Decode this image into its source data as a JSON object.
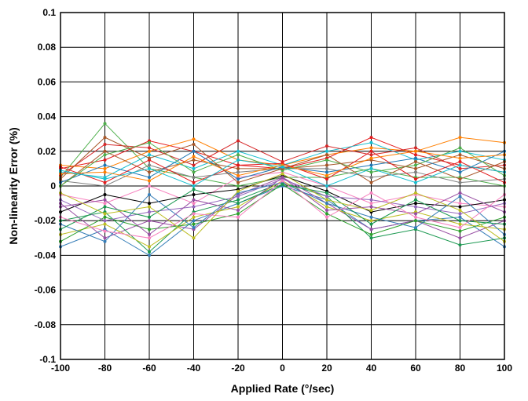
{
  "chart_data": {
    "type": "line",
    "title": "",
    "xlabel": "Applied Rate (°/sec)",
    "ylabel": "Non-linearity Error (%)",
    "xlim": [
      -100,
      100
    ],
    "ylim": [
      -0.1,
      0.1
    ],
    "grid": true,
    "legend": "none",
    "x": [
      -100,
      -80,
      -60,
      -40,
      -20,
      0,
      20,
      40,
      60,
      80,
      100
    ],
    "x_tick_labels": [
      "-100",
      "-80",
      "-60",
      "-40",
      "-20",
      "0",
      "20",
      "40",
      "60",
      "80",
      "100"
    ],
    "y_ticks": [
      -0.1,
      -0.08,
      -0.06,
      -0.04,
      -0.02,
      0,
      0.02,
      0.04,
      0.06,
      0.08,
      0.1
    ],
    "y_tick_labels": [
      "-0.1",
      "-0.08",
      "-0.06",
      "-0.04",
      "-0.02",
      "0",
      "0.02",
      "0.04",
      "0.06",
      "0.08",
      "0.1"
    ],
    "series_colors": [
      "#e41a1c",
      "#377eb8",
      "#4daf4a",
      "#984ea3",
      "#ff7f00",
      "#1a9850",
      "#a65628",
      "#f781bf",
      "#17becf",
      "#bcbd22",
      "#7f7f7f",
      "#000000",
      "#d62728",
      "#2ca02c",
      "#1f77b4",
      "#9467bd"
    ],
    "series": [
      {
        "values": [
          0.01,
          0.015,
          0.026,
          0.02,
          0.012,
          0.01,
          0.016,
          0.028,
          0.018,
          0.012,
          0.008
        ]
      },
      {
        "values": [
          -0.035,
          -0.025,
          -0.04,
          -0.02,
          -0.01,
          0.0,
          -0.008,
          -0.025,
          -0.02,
          -0.018,
          -0.035
        ]
      },
      {
        "values": [
          0.005,
          0.036,
          0.01,
          0.005,
          0.0,
          0.005,
          0.005,
          0.01,
          0.005,
          0.005,
          0.0
        ]
      },
      {
        "values": [
          -0.01,
          -0.03,
          -0.02,
          -0.025,
          -0.005,
          0.005,
          -0.01,
          -0.025,
          -0.02,
          -0.03,
          -0.02
        ]
      },
      {
        "values": [
          0.012,
          0.01,
          0.02,
          0.027,
          0.015,
          0.012,
          0.018,
          0.022,
          0.02,
          0.028,
          0.025
        ]
      },
      {
        "values": [
          -0.02,
          -0.015,
          -0.038,
          -0.015,
          -0.008,
          0.002,
          -0.006,
          -0.03,
          -0.025,
          -0.034,
          -0.03
        ]
      },
      {
        "values": [
          0.0,
          0.02,
          0.008,
          0.015,
          0.01,
          0.01,
          0.012,
          0.015,
          0.01,
          0.018,
          0.01
        ]
      },
      {
        "values": [
          -0.005,
          -0.01,
          0.0,
          -0.01,
          0.005,
          0.008,
          0.0,
          -0.01,
          -0.005,
          -0.01,
          -0.012
        ]
      },
      {
        "values": [
          0.008,
          0.005,
          0.018,
          0.01,
          0.02,
          0.012,
          0.02,
          0.025,
          0.015,
          0.02,
          0.015
        ]
      },
      {
        "values": [
          -0.028,
          -0.022,
          -0.035,
          -0.018,
          -0.012,
          0.003,
          -0.012,
          -0.02,
          -0.015,
          -0.022,
          -0.025
        ]
      },
      {
        "values": [
          0.003,
          0.0,
          0.012,
          0.005,
          0.008,
          0.01,
          0.01,
          0.005,
          0.008,
          0.002,
          0.004
        ]
      },
      {
        "values": [
          -0.015,
          -0.005,
          -0.01,
          -0.005,
          -0.002,
          0.006,
          -0.003,
          -0.015,
          -0.01,
          -0.012,
          -0.008
        ]
      },
      {
        "values": [
          0.006,
          0.024,
          0.022,
          0.012,
          0.026,
          0.014,
          0.023,
          0.018,
          0.022,
          0.01,
          0.012
        ]
      },
      {
        "values": [
          -0.032,
          -0.018,
          -0.025,
          -0.022,
          -0.016,
          0.001,
          -0.016,
          -0.028,
          -0.02,
          -0.026,
          -0.018
        ]
      },
      {
        "values": [
          0.002,
          0.012,
          0.005,
          0.02,
          0.004,
          0.011,
          0.008,
          0.012,
          0.016,
          0.008,
          0.02
        ]
      },
      {
        "values": [
          -0.008,
          -0.02,
          -0.015,
          -0.012,
          -0.006,
          0.004,
          -0.006,
          -0.008,
          -0.012,
          -0.016,
          -0.01
        ]
      },
      {
        "values": [
          0.011,
          0.002,
          0.015,
          0.002,
          0.012,
          0.013,
          0.004,
          0.02,
          0.004,
          0.014,
          0.002
        ]
      },
      {
        "values": [
          -0.022,
          -0.032,
          -0.005,
          -0.024,
          -0.004,
          0.002,
          -0.01,
          -0.018,
          -0.024,
          -0.006,
          -0.028
        ]
      },
      {
        "values": [
          0.0,
          0.018,
          0.025,
          0.008,
          0.018,
          0.009,
          0.015,
          0.008,
          0.012,
          0.022,
          0.006
        ]
      },
      {
        "values": [
          -0.012,
          -0.008,
          -0.028,
          -0.008,
          -0.014,
          0.005,
          -0.014,
          -0.012,
          -0.016,
          -0.004,
          -0.015
        ]
      },
      {
        "values": [
          0.007,
          0.008,
          0.003,
          0.017,
          0.006,
          0.012,
          0.006,
          0.016,
          0.02,
          0.016,
          0.018
        ]
      },
      {
        "values": [
          -0.025,
          -0.012,
          -0.018,
          -0.002,
          -0.01,
          0.001,
          -0.004,
          -0.022,
          -0.008,
          -0.02,
          -0.022
        ]
      },
      {
        "values": [
          0.004,
          0.028,
          0.016,
          0.024,
          0.002,
          0.01,
          0.018,
          0.002,
          0.014,
          0.004,
          0.014
        ]
      },
      {
        "values": [
          -0.018,
          -0.026,
          -0.03,
          -0.016,
          -0.018,
          0.003,
          -0.018,
          -0.004,
          -0.018,
          -0.024,
          -0.005
        ]
      },
      {
        "values": [
          0.009,
          0.004,
          0.01,
          0.0,
          0.015,
          0.011,
          0.0,
          0.01,
          0.002,
          0.012,
          0.008
        ]
      },
      {
        "values": [
          -0.004,
          -0.016,
          -0.012,
          -0.03,
          -0.003,
          0.007,
          -0.008,
          -0.014,
          -0.004,
          -0.014,
          -0.032
        ]
      }
    ]
  }
}
